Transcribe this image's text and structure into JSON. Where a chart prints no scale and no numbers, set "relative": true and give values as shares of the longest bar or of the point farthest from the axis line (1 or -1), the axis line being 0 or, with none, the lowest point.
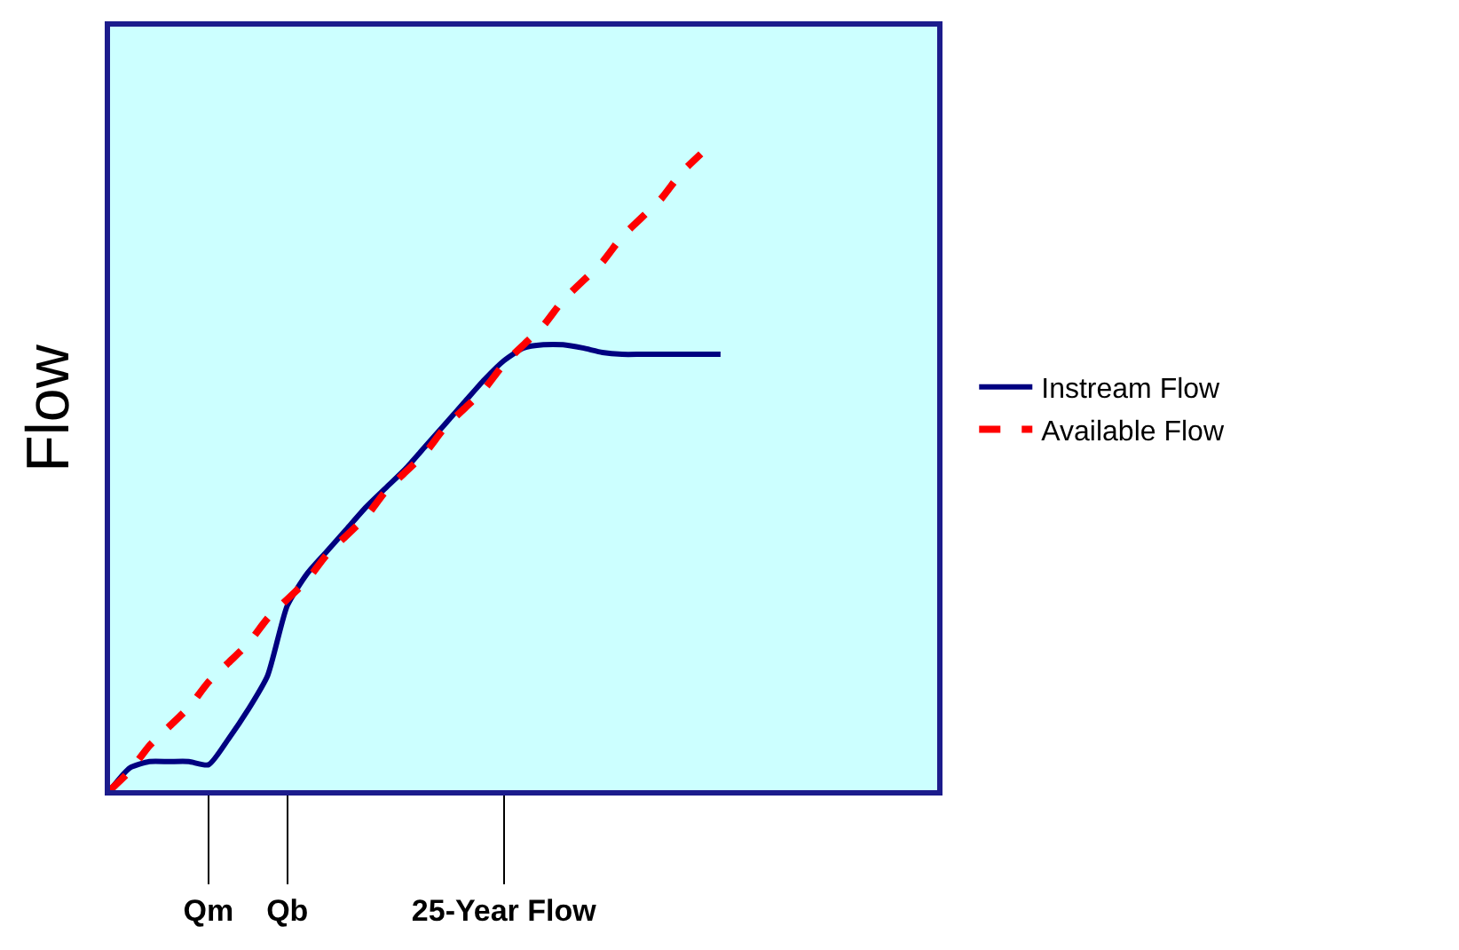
{
  "chart_data": {
    "type": "line",
    "relative": true,
    "ylabel": "Flow",
    "categories": [
      null,
      null,
      null,
      null,
      null,
      "Qm",
      null,
      null,
      null,
      "Qb",
      null,
      null,
      null,
      null,
      null,
      null,
      null,
      null,
      null,
      null,
      "25-Year Flow",
      null,
      null,
      null,
      null,
      null,
      null,
      null,
      null,
      null,
      null,
      null,
      null,
      null,
      null,
      null,
      null,
      null,
      null,
      null,
      null,
      null,
      null
    ],
    "series": [
      {
        "name": "Instream Flow",
        "color": "#000080",
        "line_style": "solid",
        "values": [
          0,
          0.035,
          0.045,
          0.045,
          0.045,
          0.04,
          0.08,
          0.126,
          0.18,
          0.29,
          0.34,
          0.375,
          0.41,
          0.445,
          0.475,
          0.505,
          0.54,
          0.575,
          0.61,
          0.645,
          0.675,
          0.695,
          0.7,
          0.7,
          0.695,
          0.688,
          0.685,
          0.685,
          0.685,
          0.685,
          0.685,
          0.685,
          null,
          null,
          null,
          null,
          null,
          null,
          null,
          null,
          null,
          null,
          null
        ]
      },
      {
        "name": "Available Flow",
        "color": "#ff0000",
        "line_style": "dashed",
        "values": [
          0,
          0.03,
          0.07,
          0.1,
          0.13,
          0.17,
          0.2,
          0.23,
          0.27,
          0.3,
          0.33,
          0.37,
          0.4,
          0.43,
          0.47,
          0.5,
          0.53,
          0.57,
          0.6,
          0.63,
          0.67,
          0.7,
          0.73,
          0.77,
          0.8,
          0.83,
          0.87,
          0.9,
          0.93,
          0.97,
          1,
          null,
          null,
          null,
          null,
          null,
          null,
          null,
          null,
          null,
          null,
          null,
          null
        ]
      }
    ],
    "grid": false,
    "legend": "right",
    "marker": "none"
  }
}
